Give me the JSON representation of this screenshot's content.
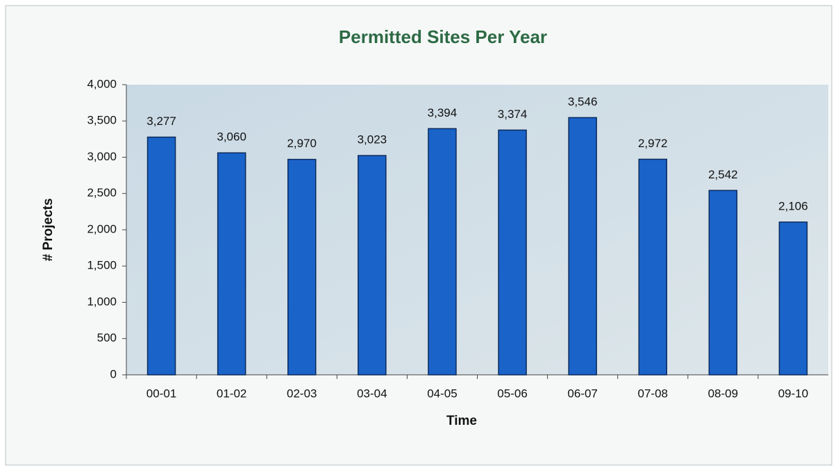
{
  "chart_data": {
    "type": "bar",
    "title": "Permitted Sites Per Year",
    "x_label": "Time",
    "y_label": "# Projects",
    "categories": [
      "00-01",
      "01-02",
      "02-03",
      "03-04",
      "04-05",
      "05-06",
      "06-07",
      "07-08",
      "08-09",
      "09-10"
    ],
    "values": [
      3277,
      3060,
      2970,
      3023,
      3394,
      3374,
      3546,
      2972,
      2542,
      2106
    ],
    "value_labels": [
      "3,277",
      "3,060",
      "2,970",
      "3,023",
      "3,394",
      "3,374",
      "3,546",
      "2,972",
      "2,542",
      "2,106"
    ],
    "color": "#1a63c9",
    "ylim": [
      0,
      4000
    ],
    "yticks": [
      0,
      500,
      {
        "value": 1000,
        "label": "1,000"
      },
      {
        "value": 1500,
        "label": "1,500"
      },
      {
        "value": 2000,
        "label": "2,000"
      },
      {
        "value": 2500,
        "label": "2,500"
      },
      {
        "value": 3000,
        "label": "3,000"
      },
      {
        "value": 3500,
        "label": "3,500"
      },
      {
        "value": 4000,
        "label": "4,000"
      }
    ],
    "grid": false
  }
}
